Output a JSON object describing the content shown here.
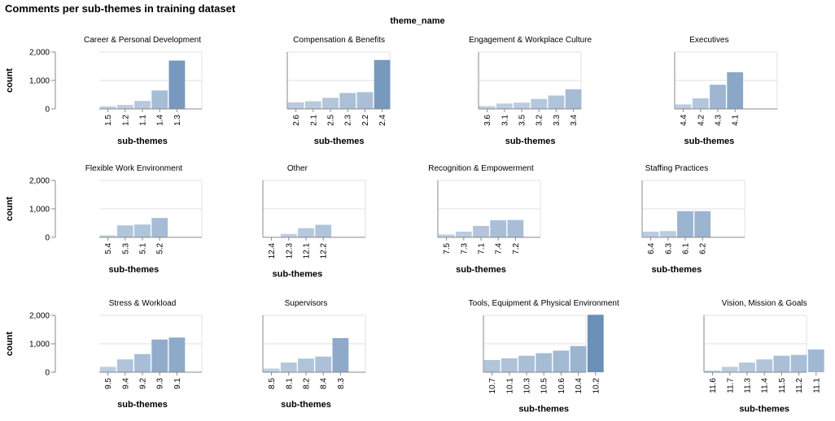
{
  "title": "Comments per sub-themes in training dataset",
  "facet_header": "theme_name",
  "colors": {
    "bar_min": "#c4d3e4",
    "bar_max": "#6b8fb7",
    "grid": "#e0e0e0",
    "axis": "#888888"
  },
  "chart_data": {
    "type": "bar",
    "facet_by": "theme_name",
    "xlabel": "sub-themes",
    "ylabel": "count",
    "ylim": [
      0,
      2000
    ],
    "y_ticks": [
      "0",
      "1,000",
      "2,000"
    ],
    "grid": true,
    "facets": [
      {
        "name": "Career & Personal Development",
        "categories": [
          "1.5",
          "1.2",
          "1.1",
          "1.4",
          "1.3"
        ],
        "values": [
          90,
          140,
          280,
          650,
          1700
        ]
      },
      {
        "name": "Compensation & Benefits",
        "categories": [
          "2.6",
          "2.1",
          "2.5",
          "2.3",
          "2.2",
          "2.4"
        ],
        "values": [
          230,
          270,
          390,
          560,
          590,
          1720
        ]
      },
      {
        "name": "Engagement & Workplace Culture",
        "categories": [
          "3.6",
          "3.1",
          "3.5",
          "3.2",
          "3.3",
          "3.4"
        ],
        "values": [
          100,
          190,
          220,
          350,
          470,
          690
        ]
      },
      {
        "name": "Executives",
        "categories": [
          "4.4",
          "4.2",
          "4.3",
          "4.1"
        ],
        "values": [
          160,
          370,
          850,
          1290
        ]
      },
      {
        "name": "Flexible Work Environment",
        "categories": [
          "5.4",
          "5.3",
          "5.1",
          "5.2"
        ],
        "values": [
          70,
          420,
          450,
          680
        ]
      },
      {
        "name": "Other",
        "categories": [
          "12.4",
          "12.3",
          "12.1",
          "12.2"
        ],
        "values": [
          10,
          120,
          320,
          440
        ]
      },
      {
        "name": "Recognition & Empowerment",
        "categories": [
          "7.5",
          "7.3",
          "7.1",
          "7.4",
          "7.2"
        ],
        "values": [
          100,
          200,
          400,
          600,
          610
        ]
      },
      {
        "name": "Staffing Practices",
        "categories": [
          "6.4",
          "6.3",
          "6.1",
          "6.2"
        ],
        "values": [
          200,
          220,
          920,
          920
        ]
      },
      {
        "name": "Stress & Workload",
        "categories": [
          "9.5",
          "9.4",
          "9.2",
          "9.3",
          "9.1"
        ],
        "values": [
          190,
          450,
          640,
          1150,
          1220
        ]
      },
      {
        "name": "Supervisors",
        "categories": [
          "8.5",
          "8.1",
          "8.2",
          "8.4",
          "8.3"
        ],
        "values": [
          130,
          340,
          480,
          550,
          1200
        ]
      },
      {
        "name": "Tools, Equipment & Physical Environment",
        "categories": [
          "10.7",
          "10.1",
          "10.3",
          "10.5",
          "10.6",
          "10.4",
          "10.2"
        ],
        "values": [
          430,
          490,
          580,
          670,
          760,
          920,
          2020
        ]
      },
      {
        "name": "Vision, Mission & Goals",
        "categories": [
          "11.6",
          "11.7",
          "11.3",
          "11.4",
          "11.5",
          "11.2",
          "11.1"
        ],
        "values": [
          60,
          190,
          340,
          450,
          580,
          610,
          800
        ]
      }
    ]
  }
}
